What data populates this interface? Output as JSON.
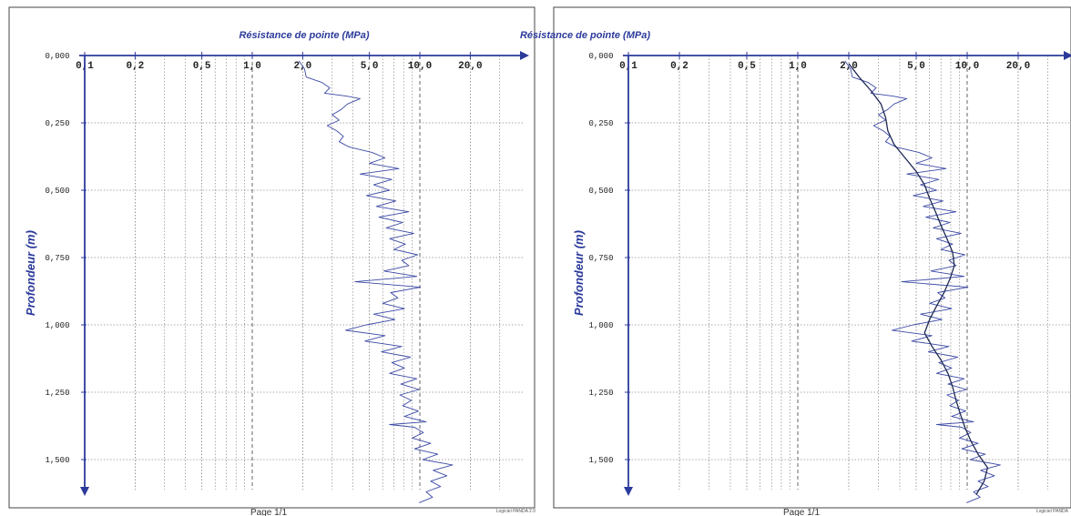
{
  "footer": {
    "page_label": "Page 1/1"
  },
  "software_labels": [
    "Logiciel PANDA 2.0",
    "Logiciel PANDA"
  ],
  "colors": {
    "axis": "#2b3a9b",
    "trace": "#3d4aa6",
    "smooth": "#1f2a55",
    "grid": "#555555",
    "frame": "#444444"
  },
  "chart_data": [
    {
      "type": "line",
      "title": "Résistance de pointe (MPa)",
      "xlabel": "Résistance de pointe (MPa)",
      "ylabel": "Profondeur (m)",
      "x_scale": "log",
      "xlim": [
        0.1,
        40
      ],
      "ylim": [
        0,
        1.65
      ],
      "y_inverted": true,
      "x_tick_labels": [
        "0,1",
        "0,2",
        "0,5",
        "1,0",
        "2,0",
        "5,0",
        "10,0",
        "20,0"
      ],
      "x_tick_values": [
        0.1,
        0.2,
        0.5,
        1.0,
        2.0,
        5.0,
        10.0,
        20.0
      ],
      "x_minor_gridlines": [
        0.3,
        0.4,
        0.6,
        0.7,
        0.8,
        0.9,
        3,
        4,
        6,
        7,
        8,
        9,
        30
      ],
      "y_tick_labels": [
        "0,000",
        "0,250",
        "0,500",
        "0,750",
        "1,000",
        "1,250",
        "1,500"
      ],
      "y_tick_values": [
        0,
        0.25,
        0.5,
        0.75,
        1.0,
        1.25,
        1.5
      ],
      "grid": true,
      "series": [
        {
          "points": [
            [
              1.9,
              0.02
            ],
            [
              2.05,
              0.05
            ],
            [
              2.1,
              0.08
            ],
            [
              2.6,
              0.1
            ],
            [
              2.9,
              0.12
            ],
            [
              2.7,
              0.14
            ],
            [
              3.6,
              0.15
            ],
            [
              4.4,
              0.16
            ],
            [
              3.7,
              0.18
            ],
            [
              3.4,
              0.2
            ],
            [
              3.0,
              0.22
            ],
            [
              3.3,
              0.24
            ],
            [
              2.8,
              0.26
            ],
            [
              3.2,
              0.28
            ],
            [
              3.5,
              0.3
            ],
            [
              3.3,
              0.32
            ],
            [
              3.8,
              0.34
            ],
            [
              5.2,
              0.36
            ],
            [
              6.2,
              0.38
            ],
            [
              5.0,
              0.4
            ],
            [
              7.5,
              0.42
            ],
            [
              4.4,
              0.44
            ],
            [
              6.8,
              0.46
            ],
            [
              5.3,
              0.48
            ],
            [
              6.6,
              0.5
            ],
            [
              4.8,
              0.52
            ],
            [
              7.2,
              0.54
            ],
            [
              5.5,
              0.56
            ],
            [
              8.6,
              0.58
            ],
            [
              5.7,
              0.6
            ],
            [
              7.9,
              0.62
            ],
            [
              6.3,
              0.64
            ],
            [
              9.2,
              0.66
            ],
            [
              6.6,
              0.68
            ],
            [
              8.2,
              0.7
            ],
            [
              7.0,
              0.72
            ],
            [
              9.7,
              0.74
            ],
            [
              7.8,
              0.76
            ],
            [
              8.6,
              0.78
            ],
            [
              6.1,
              0.8
            ],
            [
              9.6,
              0.82
            ],
            [
              4.1,
              0.84
            ],
            [
              10.1,
              0.86
            ],
            [
              6.7,
              0.88
            ],
            [
              7.4,
              0.9
            ],
            [
              6.0,
              0.92
            ],
            [
              8.1,
              0.94
            ],
            [
              5.3,
              0.96
            ],
            [
              7.1,
              0.98
            ],
            [
              4.8,
              1.0
            ],
            [
              3.6,
              1.02
            ],
            [
              6.2,
              1.04
            ],
            [
              4.7,
              1.06
            ],
            [
              7.8,
              1.08
            ],
            [
              5.9,
              1.1
            ],
            [
              8.8,
              1.12
            ],
            [
              6.8,
              1.14
            ],
            [
              8.1,
              1.16
            ],
            [
              6.6,
              1.18
            ],
            [
              9.6,
              1.2
            ],
            [
              7.7,
              1.22
            ],
            [
              9.9,
              1.24
            ],
            [
              7.6,
              1.26
            ],
            [
              8.9,
              1.28
            ],
            [
              7.9,
              1.3
            ],
            [
              9.8,
              1.32
            ],
            [
              8.1,
              1.34
            ],
            [
              10.9,
              1.36
            ],
            [
              6.6,
              1.37
            ],
            [
              9.3,
              1.38
            ],
            [
              10.5,
              1.4
            ],
            [
              9.0,
              1.42
            ],
            [
              11.6,
              1.44
            ],
            [
              9.3,
              1.46
            ],
            [
              12.8,
              1.48
            ],
            [
              10.4,
              1.5
            ],
            [
              15.7,
              1.52
            ],
            [
              12.0,
              1.54
            ],
            [
              14.5,
              1.56
            ],
            [
              11.6,
              1.58
            ],
            [
              13.3,
              1.6
            ],
            [
              10.9,
              1.62
            ],
            [
              11.9,
              1.64
            ],
            [
              9.9,
              1.66
            ]
          ]
        }
      ]
    },
    {
      "type": "line",
      "title": "Résistance de pointe (MPa)",
      "xlabel": "Résistance de pointe (MPa)",
      "ylabel": "Profondeur (m)",
      "x_scale": "log",
      "xlim": [
        0.1,
        40
      ],
      "ylim": [
        0,
        1.65
      ],
      "y_inverted": true,
      "x_tick_labels": [
        "0,1",
        "0,2",
        "0,5",
        "1,0",
        "2,0",
        "5,0",
        "10,0",
        "20,0"
      ],
      "x_tick_values": [
        0.1,
        0.2,
        0.5,
        1.0,
        2.0,
        5.0,
        10.0,
        20.0
      ],
      "x_minor_gridlines": [
        0.3,
        0.4,
        0.6,
        0.7,
        0.8,
        0.9,
        3,
        4,
        6,
        7,
        8,
        9,
        30
      ],
      "y_tick_labels": [
        "0,000",
        "0,250",
        "0,500",
        "0,750",
        "1,000",
        "1,250",
        "1,500"
      ],
      "y_tick_values": [
        0,
        0.25,
        0.5,
        0.75,
        1.0,
        1.25,
        1.5
      ],
      "grid": true,
      "series": [
        {
          "points": [
            [
              1.9,
              0.02
            ],
            [
              2.05,
              0.05
            ],
            [
              2.1,
              0.08
            ],
            [
              2.6,
              0.1
            ],
            [
              2.9,
              0.12
            ],
            [
              2.7,
              0.14
            ],
            [
              3.6,
              0.15
            ],
            [
              4.4,
              0.16
            ],
            [
              3.7,
              0.18
            ],
            [
              3.4,
              0.2
            ],
            [
              3.0,
              0.22
            ],
            [
              3.3,
              0.24
            ],
            [
              2.8,
              0.26
            ],
            [
              3.2,
              0.28
            ],
            [
              3.5,
              0.3
            ],
            [
              3.3,
              0.32
            ],
            [
              3.8,
              0.34
            ],
            [
              5.2,
              0.36
            ],
            [
              6.2,
              0.38
            ],
            [
              5.0,
              0.4
            ],
            [
              7.5,
              0.42
            ],
            [
              4.4,
              0.44
            ],
            [
              6.8,
              0.46
            ],
            [
              5.3,
              0.48
            ],
            [
              6.6,
              0.5
            ],
            [
              4.8,
              0.52
            ],
            [
              7.2,
              0.54
            ],
            [
              5.5,
              0.56
            ],
            [
              8.6,
              0.58
            ],
            [
              5.7,
              0.6
            ],
            [
              7.9,
              0.62
            ],
            [
              6.3,
              0.64
            ],
            [
              9.2,
              0.66
            ],
            [
              6.6,
              0.68
            ],
            [
              8.2,
              0.7
            ],
            [
              7.0,
              0.72
            ],
            [
              9.7,
              0.74
            ],
            [
              7.8,
              0.76
            ],
            [
              8.6,
              0.78
            ],
            [
              6.1,
              0.8
            ],
            [
              9.6,
              0.82
            ],
            [
              4.1,
              0.84
            ],
            [
              10.1,
              0.86
            ],
            [
              6.7,
              0.88
            ],
            [
              7.4,
              0.9
            ],
            [
              6.0,
              0.92
            ],
            [
              8.1,
              0.94
            ],
            [
              5.3,
              0.96
            ],
            [
              7.1,
              0.98
            ],
            [
              4.8,
              1.0
            ],
            [
              3.6,
              1.02
            ],
            [
              6.2,
              1.04
            ],
            [
              4.7,
              1.06
            ],
            [
              7.8,
              1.08
            ],
            [
              5.9,
              1.1
            ],
            [
              8.8,
              1.12
            ],
            [
              6.8,
              1.14
            ],
            [
              8.1,
              1.16
            ],
            [
              6.6,
              1.18
            ],
            [
              9.6,
              1.2
            ],
            [
              7.7,
              1.22
            ],
            [
              9.9,
              1.24
            ],
            [
              7.6,
              1.26
            ],
            [
              8.9,
              1.28
            ],
            [
              7.9,
              1.3
            ],
            [
              9.8,
              1.32
            ],
            [
              8.1,
              1.34
            ],
            [
              10.9,
              1.36
            ],
            [
              6.6,
              1.37
            ],
            [
              9.3,
              1.38
            ],
            [
              10.5,
              1.4
            ],
            [
              9.0,
              1.42
            ],
            [
              11.6,
              1.44
            ],
            [
              9.3,
              1.46
            ],
            [
              12.8,
              1.48
            ],
            [
              10.4,
              1.5
            ],
            [
              15.7,
              1.52
            ],
            [
              12.0,
              1.54
            ],
            [
              14.5,
              1.56
            ],
            [
              11.6,
              1.58
            ],
            [
              13.3,
              1.6
            ],
            [
              10.9,
              1.62
            ],
            [
              11.9,
              1.64
            ],
            [
              9.9,
              1.66
            ]
          ]
        },
        {
          "points": [
            [
              2.0,
              0.03
            ],
            [
              2.3,
              0.08
            ],
            [
              2.7,
              0.13
            ],
            [
              3.1,
              0.18
            ],
            [
              3.3,
              0.23
            ],
            [
              3.4,
              0.28
            ],
            [
              3.7,
              0.33
            ],
            [
              4.3,
              0.38
            ],
            [
              5.0,
              0.43
            ],
            [
              5.6,
              0.48
            ],
            [
              6.0,
              0.53
            ],
            [
              6.5,
              0.58
            ],
            [
              7.0,
              0.63
            ],
            [
              7.6,
              0.68
            ],
            [
              8.2,
              0.73
            ],
            [
              8.4,
              0.78
            ],
            [
              7.9,
              0.83
            ],
            [
              7.3,
              0.88
            ],
            [
              6.6,
              0.93
            ],
            [
              6.0,
              0.98
            ],
            [
              5.6,
              1.03
            ],
            [
              6.2,
              1.08
            ],
            [
              7.0,
              1.13
            ],
            [
              7.7,
              1.18
            ],
            [
              8.2,
              1.23
            ],
            [
              8.6,
              1.28
            ],
            [
              9.1,
              1.33
            ],
            [
              9.7,
              1.38
            ],
            [
              10.5,
              1.43
            ],
            [
              11.6,
              1.48
            ],
            [
              13.2,
              1.53
            ],
            [
              12.6,
              1.58
            ],
            [
              11.3,
              1.63
            ]
          ]
        }
      ]
    }
  ]
}
